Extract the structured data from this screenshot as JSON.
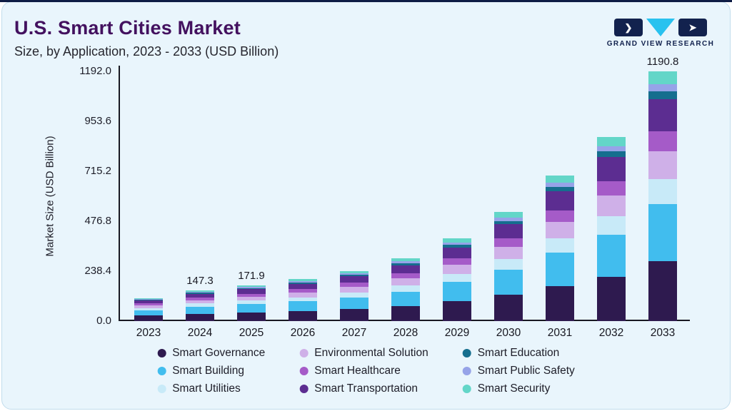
{
  "header": {
    "title": "U.S. Smart Cities Market",
    "subtitle": "Size, by Application, 2023 - 2033 (USD Billion)"
  },
  "logo": {
    "text": "GRAND VIEW RESEARCH",
    "accent_color": "#29c2ef",
    "dark_color": "#12224e"
  },
  "chart_data": {
    "type": "bar",
    "stacked": true,
    "title": "U.S. Smart Cities Market Size, by Application, 2023 - 2033 (USD Billion)",
    "xlabel": "",
    "ylabel": "Market Size (USD Billion)",
    "ylim": [
      0,
      1192
    ],
    "grid": false,
    "legend_position": "bottom",
    "yticks": [
      {
        "label": "0.0",
        "value": 0
      },
      {
        "label": "238.4",
        "value": 238.4
      },
      {
        "label": "476.8",
        "value": 476.8
      },
      {
        "label": "715.2",
        "value": 715.2
      },
      {
        "label": "953.6",
        "value": 953.6
      },
      {
        "label": "1192.0",
        "value": 1192
      }
    ],
    "categories": [
      "2023",
      "2024",
      "2025",
      "2026",
      "2027",
      "2028",
      "2029",
      "2030",
      "2031",
      "2032",
      "2033"
    ],
    "stack_order": "bottom-to-top",
    "series": [
      {
        "name": "Smart Governance",
        "color": "#2e1a4f",
        "values": [
          26.4,
          35.4,
          41.3,
          48.0,
          57.6,
          72.0,
          94.8,
          124.8,
          166.8,
          211.2,
          285.8
        ]
      },
      {
        "name": "Smart Building",
        "color": "#41bdee",
        "values": [
          25.3,
          33.9,
          39.5,
          46.0,
          55.2,
          69.0,
          90.9,
          119.6,
          159.9,
          202.4,
          273.9
        ]
      },
      {
        "name": "Smart Utilities",
        "color": "#c8eaf8",
        "values": [
          11.0,
          14.7,
          17.2,
          20.0,
          24.0,
          30.0,
          39.5,
          52.0,
          69.5,
          88.0,
          119.1
        ]
      },
      {
        "name": "Environmental Solution",
        "color": "#cfb0e8",
        "values": [
          12.1,
          16.2,
          18.9,
          22.0,
          26.4,
          33.0,
          43.5,
          57.2,
          76.5,
          96.8,
          131.0
        ]
      },
      {
        "name": "Smart Healthcare",
        "color": "#a55bc8",
        "values": [
          8.8,
          11.8,
          13.8,
          16.0,
          19.2,
          24.0,
          31.6,
          41.6,
          55.6,
          70.4,
          95.3
        ]
      },
      {
        "name": "Smart Transportation",
        "color": "#5c2d91",
        "values": [
          14.3,
          19.1,
          22.3,
          26.0,
          31.2,
          39.0,
          51.3,
          67.6,
          90.3,
          114.4,
          154.8
        ]
      },
      {
        "name": "Smart Education",
        "color": "#156e8e",
        "values": [
          3.3,
          4.4,
          5.2,
          6.0,
          7.2,
          9.0,
          11.9,
          15.6,
          20.9,
          26.4,
          35.7
        ]
      },
      {
        "name": "Smart Public Safety",
        "color": "#96a3e8",
        "values": [
          3.3,
          4.4,
          5.2,
          6.0,
          7.2,
          9.0,
          11.9,
          15.6,
          20.9,
          26.4,
          35.7
        ]
      },
      {
        "name": "Smart Security",
        "color": "#63d6c8",
        "values": [
          5.5,
          7.4,
          8.5,
          10.0,
          12.0,
          15.0,
          19.6,
          26.0,
          34.6,
          44.0,
          59.5
        ]
      }
    ],
    "totals": [
      110.0,
      147.3,
      171.9,
      200.0,
      240.0,
      300.0,
      395.0,
      520.0,
      695.0,
      880.0,
      1190.8
    ],
    "bar_labels": [
      "",
      "147.3",
      "171.9",
      "",
      "",
      "",
      "",
      "",
      "",
      "",
      "1190.8"
    ]
  },
  "legend": {
    "display_order": [
      "Smart Governance",
      "Environmental Solution",
      "Smart Education",
      "Smart Building",
      "Smart Healthcare",
      "Smart Public Safety",
      "Smart Utilities",
      "Smart Transportation",
      "Smart Security"
    ]
  }
}
